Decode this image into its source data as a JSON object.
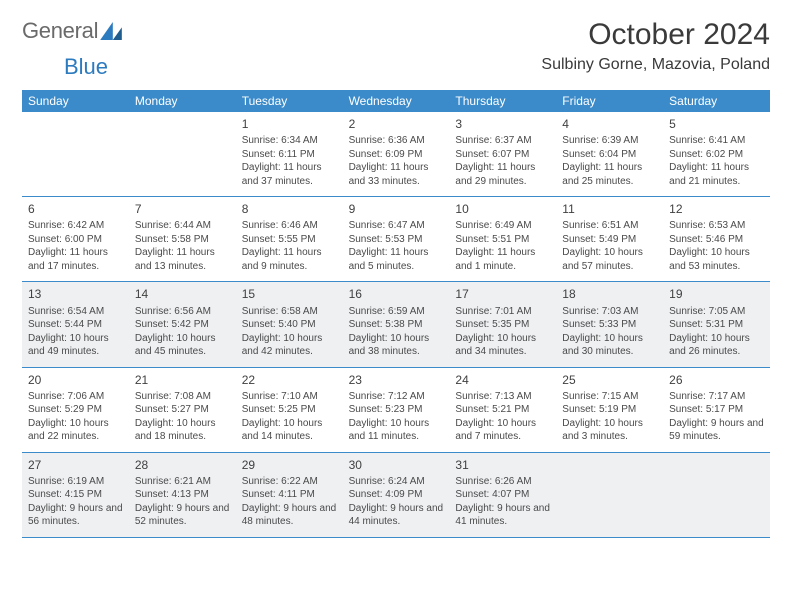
{
  "brand": {
    "word1": "General",
    "word2": "Blue"
  },
  "title": "October 2024",
  "location": "Sulbiny Gorne, Mazovia, Poland",
  "colors": {
    "header_bg": "#3b8bca",
    "header_text": "#ffffff",
    "rule": "#3b8bca",
    "shade_bg": "#eef0f2",
    "text": "#4a4a4a",
    "title_text": "#3a3a3a",
    "logo_gray": "#6a6a6a",
    "logo_blue": "#2d7bbf"
  },
  "day_labels": [
    "Sunday",
    "Monday",
    "Tuesday",
    "Wednesday",
    "Thursday",
    "Friday",
    "Saturday"
  ],
  "weeks": [
    [
      null,
      null,
      {
        "n": "1",
        "sr": "6:34 AM",
        "ss": "6:11 PM",
        "dl": "11 hours and 37 minutes."
      },
      {
        "n": "2",
        "sr": "6:36 AM",
        "ss": "6:09 PM",
        "dl": "11 hours and 33 minutes."
      },
      {
        "n": "3",
        "sr": "6:37 AM",
        "ss": "6:07 PM",
        "dl": "11 hours and 29 minutes."
      },
      {
        "n": "4",
        "sr": "6:39 AM",
        "ss": "6:04 PM",
        "dl": "11 hours and 25 minutes."
      },
      {
        "n": "5",
        "sr": "6:41 AM",
        "ss": "6:02 PM",
        "dl": "11 hours and 21 minutes."
      }
    ],
    [
      {
        "n": "6",
        "sr": "6:42 AM",
        "ss": "6:00 PM",
        "dl": "11 hours and 17 minutes."
      },
      {
        "n": "7",
        "sr": "6:44 AM",
        "ss": "5:58 PM",
        "dl": "11 hours and 13 minutes."
      },
      {
        "n": "8",
        "sr": "6:46 AM",
        "ss": "5:55 PM",
        "dl": "11 hours and 9 minutes."
      },
      {
        "n": "9",
        "sr": "6:47 AM",
        "ss": "5:53 PM",
        "dl": "11 hours and 5 minutes."
      },
      {
        "n": "10",
        "sr": "6:49 AM",
        "ss": "5:51 PM",
        "dl": "11 hours and 1 minute."
      },
      {
        "n": "11",
        "sr": "6:51 AM",
        "ss": "5:49 PM",
        "dl": "10 hours and 57 minutes."
      },
      {
        "n": "12",
        "sr": "6:53 AM",
        "ss": "5:46 PM",
        "dl": "10 hours and 53 minutes."
      }
    ],
    [
      {
        "n": "13",
        "sr": "6:54 AM",
        "ss": "5:44 PM",
        "dl": "10 hours and 49 minutes."
      },
      {
        "n": "14",
        "sr": "6:56 AM",
        "ss": "5:42 PM",
        "dl": "10 hours and 45 minutes."
      },
      {
        "n": "15",
        "sr": "6:58 AM",
        "ss": "5:40 PM",
        "dl": "10 hours and 42 minutes."
      },
      {
        "n": "16",
        "sr": "6:59 AM",
        "ss": "5:38 PM",
        "dl": "10 hours and 38 minutes."
      },
      {
        "n": "17",
        "sr": "7:01 AM",
        "ss": "5:35 PM",
        "dl": "10 hours and 34 minutes."
      },
      {
        "n": "18",
        "sr": "7:03 AM",
        "ss": "5:33 PM",
        "dl": "10 hours and 30 minutes."
      },
      {
        "n": "19",
        "sr": "7:05 AM",
        "ss": "5:31 PM",
        "dl": "10 hours and 26 minutes."
      }
    ],
    [
      {
        "n": "20",
        "sr": "7:06 AM",
        "ss": "5:29 PM",
        "dl": "10 hours and 22 minutes."
      },
      {
        "n": "21",
        "sr": "7:08 AM",
        "ss": "5:27 PM",
        "dl": "10 hours and 18 minutes."
      },
      {
        "n": "22",
        "sr": "7:10 AM",
        "ss": "5:25 PM",
        "dl": "10 hours and 14 minutes."
      },
      {
        "n": "23",
        "sr": "7:12 AM",
        "ss": "5:23 PM",
        "dl": "10 hours and 11 minutes."
      },
      {
        "n": "24",
        "sr": "7:13 AM",
        "ss": "5:21 PM",
        "dl": "10 hours and 7 minutes."
      },
      {
        "n": "25",
        "sr": "7:15 AM",
        "ss": "5:19 PM",
        "dl": "10 hours and 3 minutes."
      },
      {
        "n": "26",
        "sr": "7:17 AM",
        "ss": "5:17 PM",
        "dl": "9 hours and 59 minutes."
      }
    ],
    [
      {
        "n": "27",
        "sr": "6:19 AM",
        "ss": "4:15 PM",
        "dl": "9 hours and 56 minutes."
      },
      {
        "n": "28",
        "sr": "6:21 AM",
        "ss": "4:13 PM",
        "dl": "9 hours and 52 minutes."
      },
      {
        "n": "29",
        "sr": "6:22 AM",
        "ss": "4:11 PM",
        "dl": "9 hours and 48 minutes."
      },
      {
        "n": "30",
        "sr": "6:24 AM",
        "ss": "4:09 PM",
        "dl": "9 hours and 44 minutes."
      },
      {
        "n": "31",
        "sr": "6:26 AM",
        "ss": "4:07 PM",
        "dl": "9 hours and 41 minutes."
      },
      null,
      null
    ]
  ],
  "labels": {
    "sunrise": "Sunrise: ",
    "sunset": "Sunset: ",
    "daylight": "Daylight: "
  },
  "shaded_rows": [
    2,
    4
  ]
}
